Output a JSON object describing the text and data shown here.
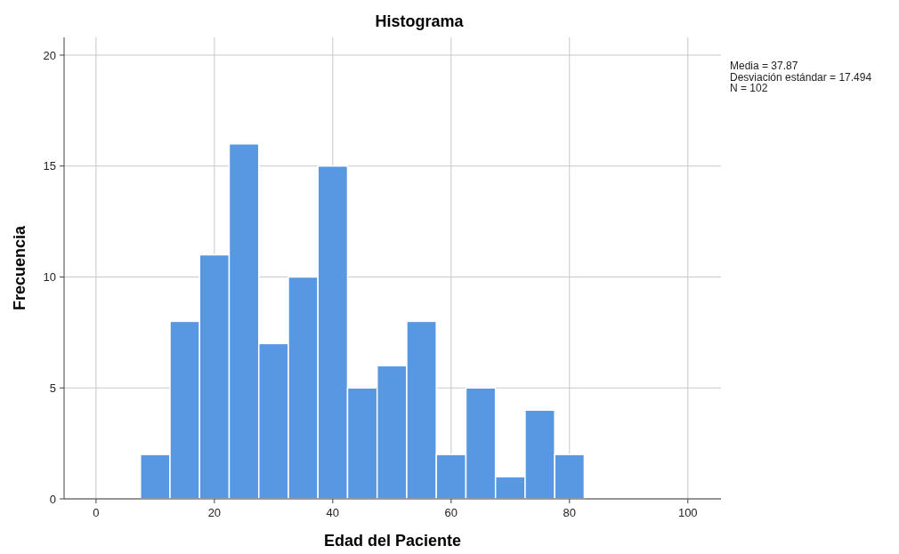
{
  "chart_data": {
    "type": "histogram",
    "title": "Histograma",
    "xlabel": "Edad del Paciente",
    "ylabel": "Frecuencia",
    "bins": [
      7.5,
      12.5,
      17.5,
      22.5,
      27.5,
      32.5,
      37.5,
      42.5,
      47.5,
      52.5,
      57.5,
      62.5,
      67.5,
      72.5,
      77.5,
      82.5
    ],
    "values": [
      2,
      8,
      11,
      16,
      7,
      10,
      15,
      5,
      6,
      8,
      2,
      5,
      1,
      4,
      2
    ],
    "color": "#5898e3",
    "xlim": [
      -5.4,
      105.6
    ],
    "xticks": [
      0,
      20,
      40,
      60,
      80,
      100
    ],
    "ylim": [
      0,
      20.8
    ],
    "yticks": [
      0,
      5,
      10,
      15,
      20
    ],
    "grid": true,
    "annotations": [
      "Media = 37.87",
      "Desviación estándar = 17.494",
      "N = 102"
    ]
  }
}
